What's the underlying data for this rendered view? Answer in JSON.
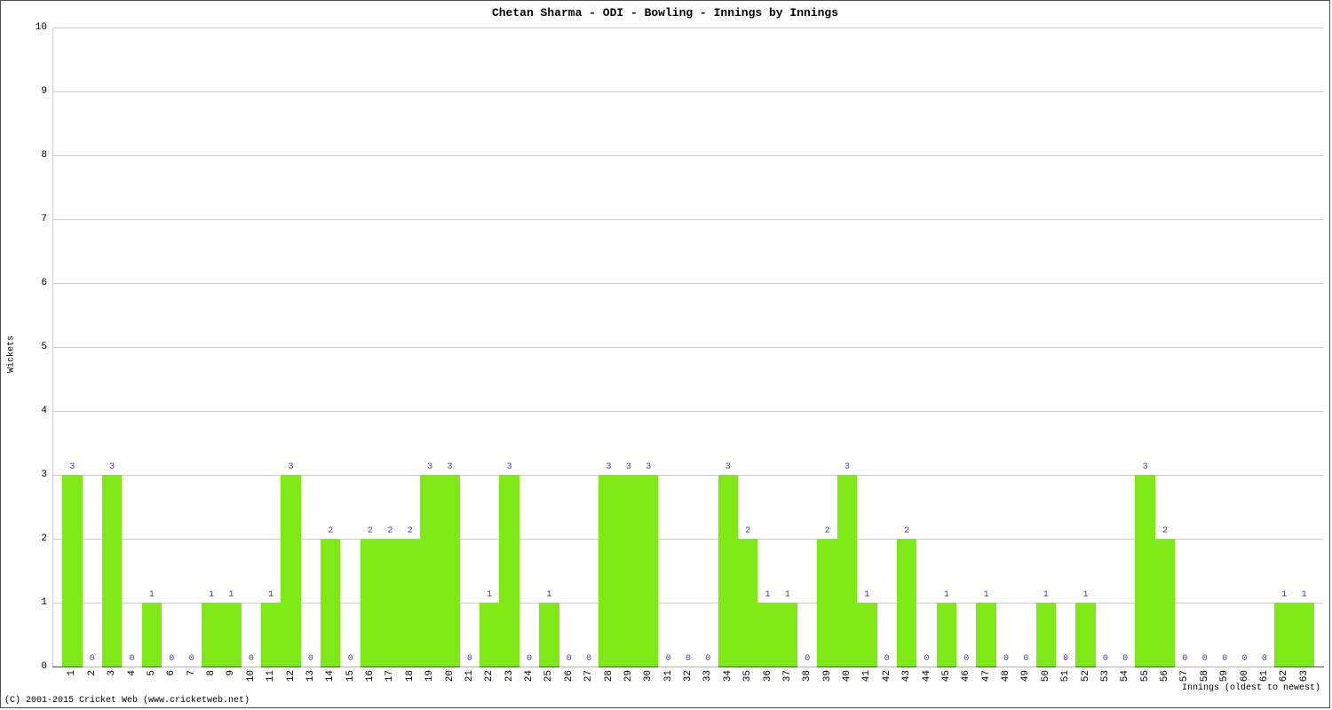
{
  "chart": {
    "type": "bar",
    "title": "Chetan Sharma - ODI - Bowling - Innings by Innings",
    "ylabel": "Wickets",
    "xlabel": "Innings (oldest to newest)",
    "copyright": "(C) 2001-2015 Cricket Web (www.cricketweb.net)",
    "ylim": [
      0,
      10
    ],
    "ytick_step": 1,
    "xlim": [
      0,
      64
    ],
    "grid_color": "#cccccc",
    "axis_line_color": "#4f4f4f",
    "background_color": "#ffffff",
    "bar_color": "#7fe817",
    "value_label_color": "#3b3bca",
    "title_fontsize": 13,
    "tick_fontsize": 11,
    "value_fontsize": 10,
    "label_fontsize": 10,
    "bar_width": 1.0,
    "data": {
      "innings": [
        1,
        2,
        3,
        4,
        5,
        6,
        7,
        8,
        9,
        10,
        11,
        12,
        13,
        14,
        15,
        16,
        17,
        18,
        19,
        20,
        21,
        22,
        23,
        24,
        25,
        26,
        27,
        28,
        29,
        30,
        31,
        32,
        33,
        34,
        35,
        36,
        37,
        38,
        39,
        40,
        41,
        42,
        43,
        44,
        45,
        46,
        47,
        48,
        49,
        50,
        51,
        52,
        53,
        54,
        55,
        56,
        57,
        58,
        59,
        60,
        61,
        62,
        63
      ],
      "wickets": [
        3,
        0,
        3,
        0,
        1,
        0,
        0,
        1,
        1,
        0,
        1,
        3,
        0,
        2,
        0,
        2,
        2,
        2,
        3,
        3,
        0,
        1,
        3,
        0,
        1,
        0,
        0,
        3,
        3,
        3,
        0,
        0,
        0,
        3,
        2,
        1,
        1,
        0,
        2,
        3,
        1,
        0,
        2,
        0,
        1,
        0,
        1,
        0,
        0,
        1,
        0,
        1,
        0,
        0,
        3,
        2,
        0,
        0,
        0,
        0,
        0,
        1,
        1
      ]
    }
  }
}
